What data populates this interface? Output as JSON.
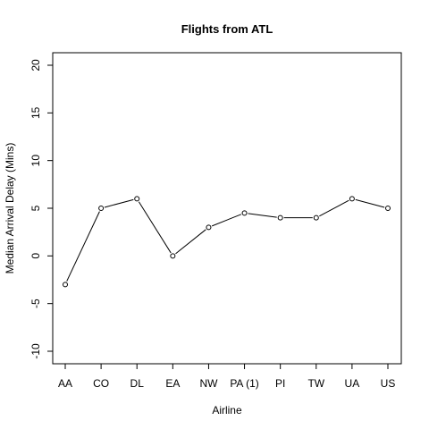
{
  "chart_data": {
    "type": "line",
    "title": "Flights from ATL",
    "xlabel": "Airline",
    "ylabel": "Median Arrival Delay (Mins)",
    "categories": [
      "AA",
      "CO",
      "DL",
      "EA",
      "NW",
      "PA (1)",
      "PI",
      "TW",
      "UA",
      "US"
    ],
    "series": [
      {
        "values": [
          -3,
          5,
          6,
          0,
          3,
          4.5,
          4,
          4,
          6,
          5
        ]
      }
    ],
    "ylim": [
      -10,
      20
    ],
    "yticks": [
      -10,
      -5,
      0,
      5,
      10,
      15,
      20
    ],
    "ytick_labels": [
      "-10",
      "-5",
      "0",
      "5",
      "10",
      "15",
      "20"
    ],
    "grid": false,
    "marker": "open-circle",
    "line_color": "#000000"
  }
}
